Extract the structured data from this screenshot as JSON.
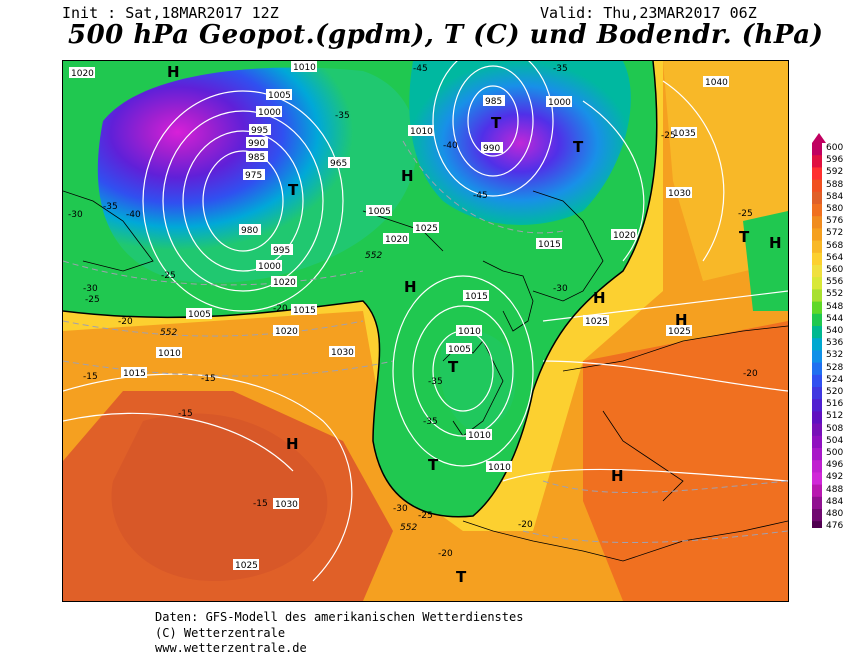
{
  "header": {
    "init": "Init : Sat,18MAR2017 12Z",
    "valid": "Valid: Thu,23MAR2017 06Z",
    "title": "500 hPa Geopot.(gpdm), T (C) und Bodendr. (hPa)"
  },
  "footer": {
    "line1": "Daten: GFS-Modell des amerikanischen Wetterdienstes",
    "line2": "(C) Wetterzentrale",
    "line3": "www.wetterzentrale.de"
  },
  "legend": {
    "values": [
      "600",
      "596",
      "592",
      "588",
      "584",
      "580",
      "576",
      "572",
      "568",
      "564",
      "560",
      "556",
      "552",
      "548",
      "544",
      "540",
      "536",
      "532",
      "528",
      "524",
      "520",
      "516",
      "512",
      "508",
      "504",
      "500",
      "496",
      "492",
      "488",
      "484",
      "480",
      "476"
    ],
    "colors": [
      "#c00060",
      "#e01040",
      "#ff3030",
      "#f05020",
      "#e06028",
      "#f07020",
      "#f08c20",
      "#f5a020",
      "#f8b828",
      "#fcd030",
      "#f0e040",
      "#d8e838",
      "#a8e030",
      "#60d828",
      "#20c850",
      "#00b890",
      "#00a8d0",
      "#1090e8",
      "#2070f0",
      "#3050f0",
      "#4038e0",
      "#5020d0",
      "#6010c0",
      "#7810b8",
      "#9010c0",
      "#a818c8",
      "#c020d0",
      "#d028d8",
      "#b818b0",
      "#901090",
      "#700870",
      "#500050"
    ]
  },
  "map": {
    "pressure_labels": [
      "1020",
      "1010",
      "1005",
      "1000",
      "995",
      "990",
      "985",
      "980",
      "975",
      "965",
      "1010",
      "1020",
      "1025",
      "1030",
      "1035",
      "1040",
      "1015",
      "1025",
      "1020",
      "1030",
      "1025",
      "1015",
      "1010",
      "1005",
      "1010",
      "1010",
      "1030",
      "1025",
      "1020",
      "1010",
      "1015",
      "1005",
      "1000",
      "995",
      "990",
      "985",
      "1000",
      "1005",
      "1015",
      "1020"
    ],
    "temp_labels": [
      "-45",
      "-40",
      "-35",
      "-30",
      "-25",
      "-20",
      "-15",
      "-40",
      "-35",
      "-45",
      "-35",
      "-30",
      "-25",
      "-20",
      "-25",
      "-20",
      "-15",
      "-20",
      "-15",
      "-25",
      "-30",
      "-35",
      "-35",
      "-30",
      "-25",
      "-20",
      "-15"
    ],
    "height_labels": [
      "552",
      "552",
      "552"
    ],
    "centers": [
      "H",
      "T",
      "H",
      "T",
      "H",
      "T",
      "H",
      "H",
      "T",
      "H",
      "T",
      "H",
      "T",
      "H",
      "T"
    ]
  }
}
